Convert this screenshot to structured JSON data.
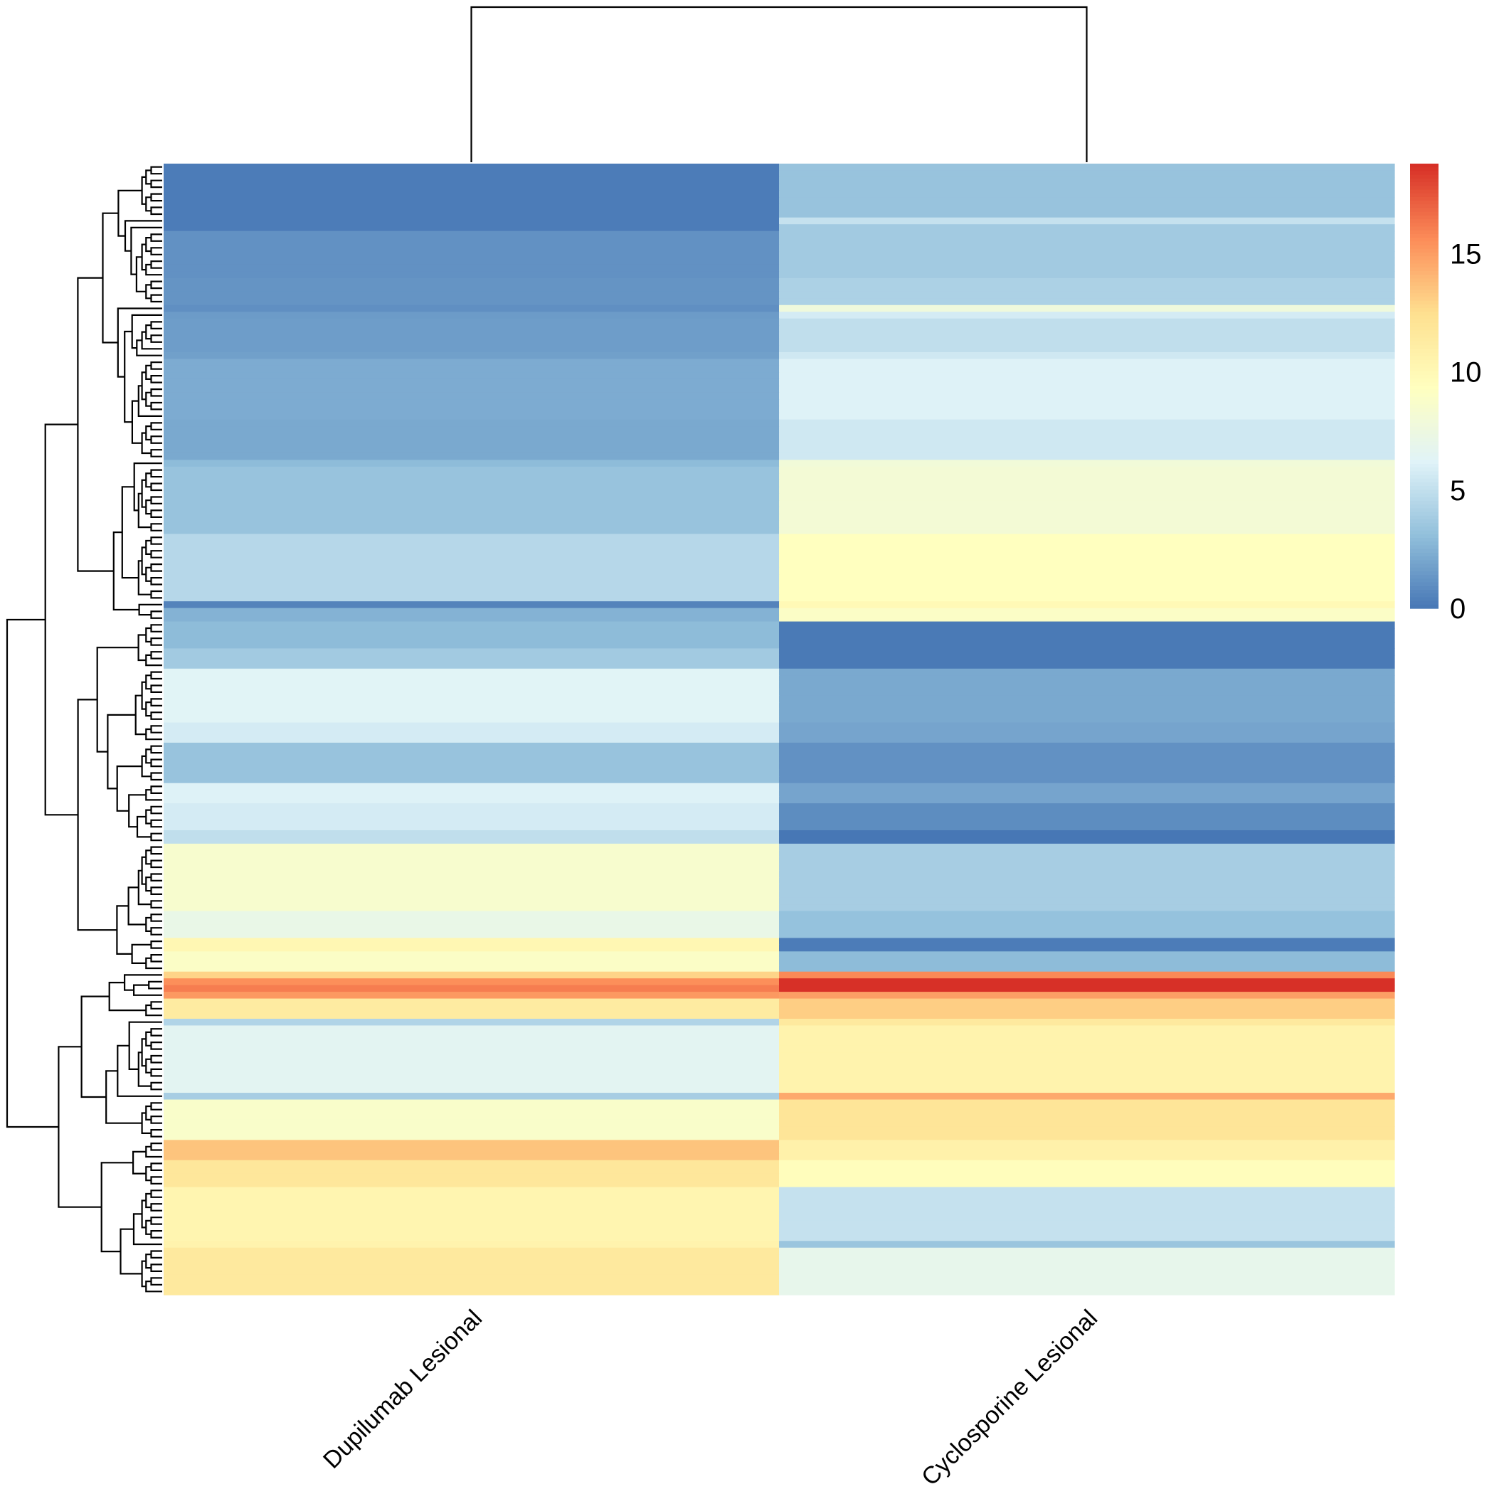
{
  "chart_data": {
    "type": "heatmap",
    "title": "",
    "xlabel": "",
    "ylabel": "",
    "columns": [
      "Dupilumab Lesional",
      "Cyclosporine Lesional"
    ],
    "column_dendrogram": "Dupilumab Lesional and Cyclosporine Lesional joined at root",
    "row_dendrogram": "hierarchical clustering of ~160 rows (drawn on left)",
    "color_scale": {
      "min": 0,
      "max": 18.8,
      "ticks": [
        0,
        5,
        10,
        15
      ],
      "colors": [
        "#4575B4",
        "#91BFDB",
        "#E0F3F8",
        "#FFFFBF",
        "#FEE090",
        "#FC8D59",
        "#D73027"
      ]
    },
    "row_blocks": [
      {
        "rows": 8,
        "values": [
          0.3,
          3.4
        ]
      },
      {
        "rows": 1,
        "values": [
          0.3,
          5.2
        ]
      },
      {
        "rows": 1,
        "values": [
          0.3,
          3.8
        ]
      },
      {
        "rows": 7,
        "values": [
          1.2,
          3.8
        ]
      },
      {
        "rows": 4,
        "values": [
          1.3,
          4.2
        ]
      },
      {
        "rows": 1,
        "values": [
          1.1,
          7.8
        ]
      },
      {
        "rows": 1,
        "values": [
          1.6,
          5.8
        ]
      },
      {
        "rows": 5,
        "values": [
          1.7,
          5.0
        ]
      },
      {
        "rows": 1,
        "values": [
          1.8,
          5.6
        ]
      },
      {
        "rows": 9,
        "values": [
          2.3,
          6.2
        ]
      },
      {
        "rows": 6,
        "values": [
          2.2,
          5.6
        ]
      },
      {
        "rows": 1,
        "values": [
          3.0,
          8.0
        ]
      },
      {
        "rows": 10,
        "values": [
          3.4,
          8.2
        ]
      },
      {
        "rows": 10,
        "values": [
          4.6,
          9.4
        ]
      },
      {
        "rows": 1,
        "values": [
          0.6,
          10.0
        ]
      },
      {
        "rows": 2,
        "values": [
          2.6,
          9.0
        ]
      },
      {
        "rows": 4,
        "values": [
          3.0,
          0.2
        ]
      },
      {
        "rows": 3,
        "values": [
          3.8,
          0.2
        ]
      },
      {
        "rows": 8,
        "values": [
          6.4,
          2.2
        ]
      },
      {
        "rows": 3,
        "values": [
          5.8,
          2.0
        ]
      },
      {
        "rows": 6,
        "values": [
          3.4,
          1.2
        ]
      },
      {
        "rows": 3,
        "values": [
          6.2,
          2.0
        ]
      },
      {
        "rows": 4,
        "values": [
          5.8,
          1.0
        ]
      },
      {
        "rows": 2,
        "values": [
          5.0,
          0.1
        ]
      },
      {
        "rows": 10,
        "values": [
          8.6,
          4.0
        ]
      },
      {
        "rows": 4,
        "values": [
          7.2,
          3.3
        ]
      },
      {
        "rows": 2,
        "values": [
          10.2,
          0.3
        ]
      },
      {
        "rows": 3,
        "values": [
          9.0,
          3.0
        ]
      },
      {
        "rows": 1,
        "values": [
          13.0,
          15.8
        ]
      },
      {
        "rows": 1,
        "values": [
          15.6,
          18.8
        ]
      },
      {
        "rows": 1,
        "values": [
          16.2,
          18.8
        ]
      },
      {
        "rows": 1,
        "values": [
          15.2,
          15.0
        ]
      },
      {
        "rows": 3,
        "values": [
          11.4,
          13.2
        ]
      },
      {
        "rows": 1,
        "values": [
          4.4,
          11.6
        ]
      },
      {
        "rows": 10,
        "values": [
          6.6,
          10.6
        ]
      },
      {
        "rows": 1,
        "values": [
          4.0,
          14.6
        ]
      },
      {
        "rows": 6,
        "values": [
          8.8,
          12.0
        ]
      },
      {
        "rows": 3,
        "values": [
          13.6,
          10.8
        ]
      },
      {
        "rows": 4,
        "values": [
          11.8,
          9.6
        ]
      },
      {
        "rows": 8,
        "values": [
          10.4,
          5.2
        ]
      },
      {
        "rows": 1,
        "values": [
          10.6,
          3.5
        ]
      },
      {
        "rows": 7,
        "values": [
          11.6,
          7.0
        ]
      }
    ]
  }
}
